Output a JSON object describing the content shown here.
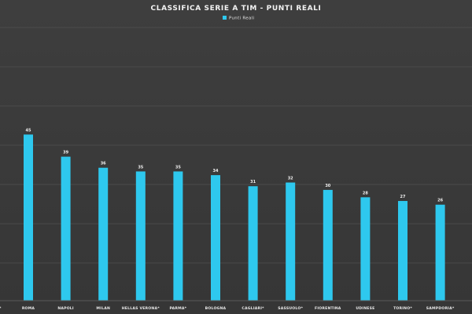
{
  "chart_data": {
    "type": "bar",
    "title": "CLASSIFICA SERIE A TIM - PUNTI REALI",
    "legend": {
      "placement": "top-center",
      "entries": [
        "Punti Reali"
      ]
    },
    "categories": [
      "ROMA",
      "NAPOLI",
      "MILAN",
      "HELLAS VERONA*",
      "PARMA*",
      "BOLOGNA",
      "CAGLIARI*",
      "SASSUOLO*",
      "FIORENTINA",
      "UDINESE",
      "TORINO*",
      "SAMPDORIA*"
    ],
    "series": [
      {
        "name": "Punti Reali",
        "color": "#2ec8ee",
        "values": [
          45,
          39,
          36,
          35,
          35,
          34,
          31,
          32,
          30,
          28,
          27,
          26
        ],
        "labels": [
          "45",
          "39",
          "36",
          "35",
          "35",
          "34",
          "31",
          "32",
          "30",
          "28",
          "27",
          "26"
        ]
      }
    ],
    "ylim": [
      0,
      74
    ],
    "grid": true
  }
}
